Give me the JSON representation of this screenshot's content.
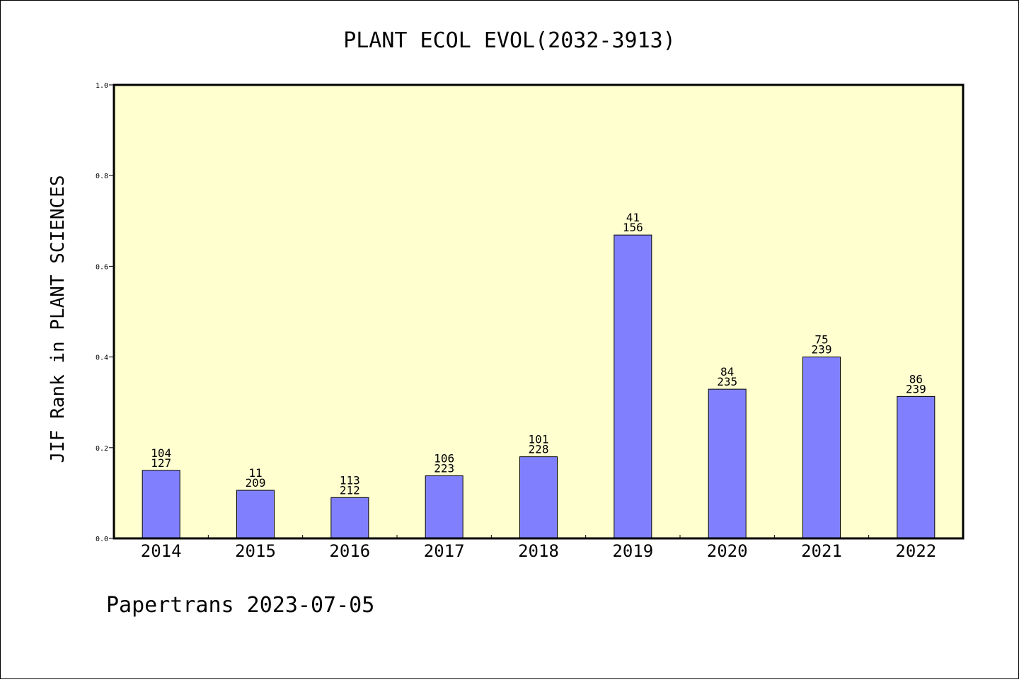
{
  "chart_data": {
    "type": "bar",
    "title": "PLANT ECOL EVOL(2032-3913)",
    "xlabel": "",
    "ylabel": "JIF Rank in PLANT SCIENCES",
    "ylim": [
      0,
      1.0
    ],
    "yticks": [
      "0.0",
      "0.2",
      "0.4",
      "0.6",
      "0.8",
      "1.0"
    ],
    "categories": [
      "2014",
      "2015",
      "2016",
      "2017",
      "2018",
      "2019",
      "2020",
      "2021",
      "2022"
    ],
    "values": [
      0.15,
      0.106,
      0.09,
      0.138,
      0.18,
      0.669,
      0.329,
      0.4,
      0.313
    ],
    "rank_labels": [
      {
        "rank": "104",
        "total": "127"
      },
      {
        "rank": "11",
        "total": "209"
      },
      {
        "rank": "113",
        "total": "212"
      },
      {
        "rank": "106",
        "total": "223"
      },
      {
        "rank": "101",
        "total": "228"
      },
      {
        "rank": "41",
        "total": "156"
      },
      {
        "rank": "84",
        "total": "235"
      },
      {
        "rank": "75",
        "total": "239"
      },
      {
        "rank": "86",
        "total": "239"
      }
    ],
    "bar_color": "#8080ff",
    "plot_background": "#ffffd0",
    "grid": false,
    "legend": "none"
  },
  "footer": "Papertrans 2023-07-05"
}
